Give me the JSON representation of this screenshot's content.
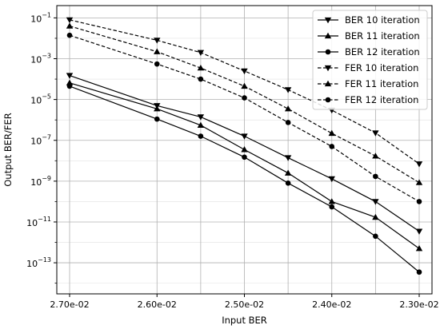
{
  "chart_data": {
    "type": "line",
    "xlabel": "Input BER",
    "ylabel": "Output BER/FER",
    "x": [
      "2.70e-02",
      "2.60e-02",
      "2.55e-02",
      "2.50e-02",
      "2.45e-02",
      "2.40e-02",
      "2.35e-02",
      "2.30e-02"
    ],
    "x_ticks": [
      "2.70e-02",
      "2.60e-02",
      "2.50e-02",
      "2.40e-02",
      "2.30e-02"
    ],
    "y_scale": "log",
    "ylim": [
      3e-15,
      0.4
    ],
    "y_ticks": [
      {
        "value": 1e-13,
        "base": "10",
        "exp": "−13"
      },
      {
        "value": 1e-11,
        "base": "10",
        "exp": "−11"
      },
      {
        "value": 1e-09,
        "base": "10",
        "exp": "−9"
      },
      {
        "value": 1e-07,
        "base": "10",
        "exp": "−7"
      },
      {
        "value": 1e-05,
        "base": "10",
        "exp": "−5"
      },
      {
        "value": 0.001,
        "base": "10",
        "exp": "−3"
      },
      {
        "value": 0.1,
        "base": "10",
        "exp": "−1"
      }
    ],
    "grid": true,
    "legend_position": "top-right",
    "series": [
      {
        "name": "BER 10 iteration",
        "marker": "triangle-down",
        "dash": "solid",
        "values": [
          0.00015,
          5e-06,
          1.4e-06,
          1.6e-07,
          1.4e-08,
          1.3e-09,
          1e-10,
          3.5e-12
        ]
      },
      {
        "name": "BER 11 iteration",
        "marker": "triangle-up",
        "dash": "solid",
        "values": [
          6.5e-05,
          3.5e-06,
          5.5e-07,
          3.5e-08,
          2.5e-09,
          1e-10,
          1.7e-11,
          5e-13
        ]
      },
      {
        "name": "BER 12 iteration",
        "marker": "circle",
        "dash": "solid",
        "values": [
          4.5e-05,
          1.1e-06,
          1.6e-07,
          1.5e-08,
          8e-10,
          5.5e-11,
          2e-12,
          3.5e-14
        ]
      },
      {
        "name": "FER 10 iteration",
        "marker": "triangle-down",
        "dash": "dashed",
        "values": [
          0.08,
          0.008,
          0.002,
          0.00025,
          3e-05,
          3e-06,
          2.3e-07,
          7e-09
        ]
      },
      {
        "name": "FER 11 iteration",
        "marker": "triangle-up",
        "dash": "dashed",
        "values": [
          0.04,
          0.0022,
          0.00035,
          4.5e-05,
          3.5e-06,
          2.2e-07,
          1.7e-08,
          8.5e-10
        ]
      },
      {
        "name": "FER 12 iteration",
        "marker": "circle",
        "dash": "dashed",
        "values": [
          0.014,
          0.00055,
          0.0001,
          1.2e-05,
          7.5e-07,
          5e-08,
          1.7e-09,
          1e-10
        ]
      }
    ]
  }
}
